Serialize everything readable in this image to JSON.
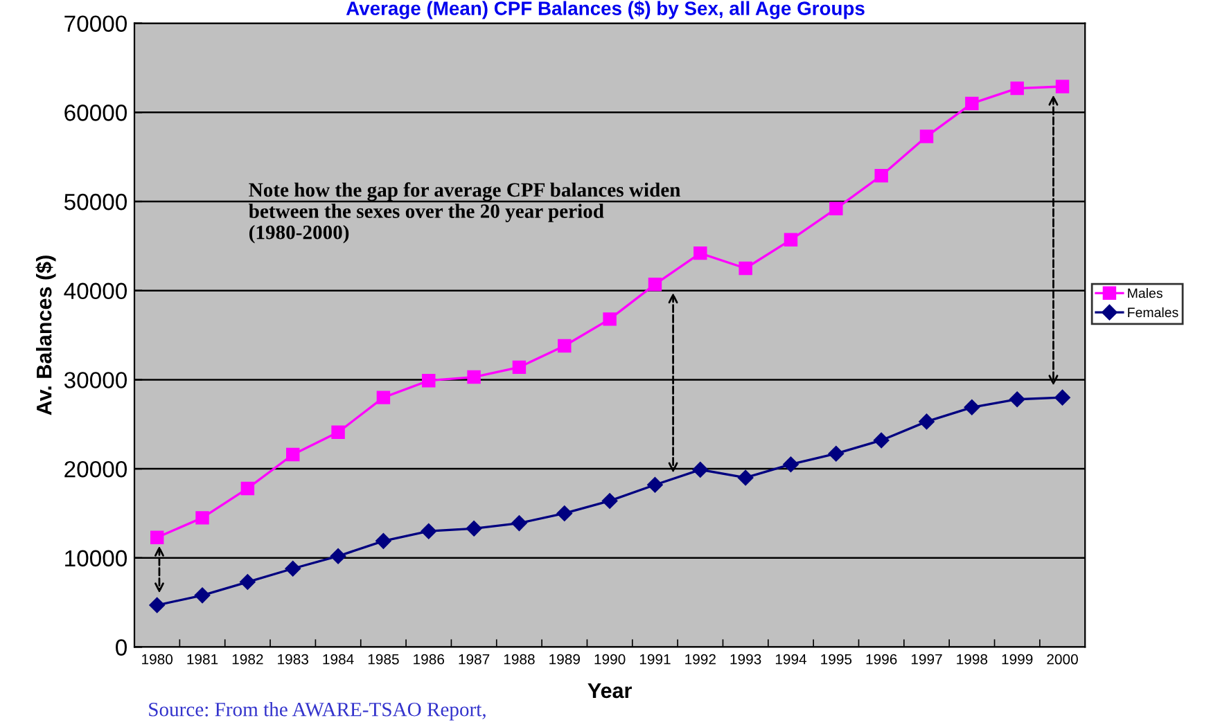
{
  "chart_data": {
    "type": "line",
    "title": "Average (Mean) CPF Balances ($) by Sex, all Age Groups",
    "xlabel": "Year",
    "ylabel": "Av. Balances ($)",
    "categories": [
      "1980",
      "1981",
      "1982",
      "1983",
      "1984",
      "1985",
      "1986",
      "1987",
      "1988",
      "1989",
      "1990",
      "1991",
      "1992",
      "1993",
      "1994",
      "1995",
      "1996",
      "1997",
      "1998",
      "1999",
      "2000"
    ],
    "series": [
      {
        "name": "Males",
        "color": "#ff00ff",
        "marker": "square",
        "values": [
          12300,
          14500,
          17800,
          21600,
          24100,
          28000,
          29900,
          30300,
          31400,
          33800,
          36800,
          40700,
          44200,
          42500,
          45700,
          49200,
          52900,
          57300,
          61000,
          62700,
          62900
        ]
      },
      {
        "name": "Females",
        "color": "#000080",
        "marker": "diamond",
        "values": [
          4700,
          5800,
          7300,
          8800,
          10200,
          11900,
          13000,
          13300,
          13900,
          15000,
          16400,
          18200,
          19900,
          19000,
          20500,
          21700,
          23200,
          25300,
          26900,
          27800,
          28000
        ]
      }
    ],
    "ylim": [
      0,
      70000
    ],
    "yticks": [
      0,
      10000,
      20000,
      30000,
      40000,
      50000,
      60000,
      70000
    ],
    "grid": "y",
    "legend": "right",
    "line_style": "solid",
    "annotations": [
      "Note how the gap for average CPF balances widen between the sexes over the 20 year period (1980-2000)",
      "Source: From the AWARE-TSAO Report,"
    ]
  }
}
